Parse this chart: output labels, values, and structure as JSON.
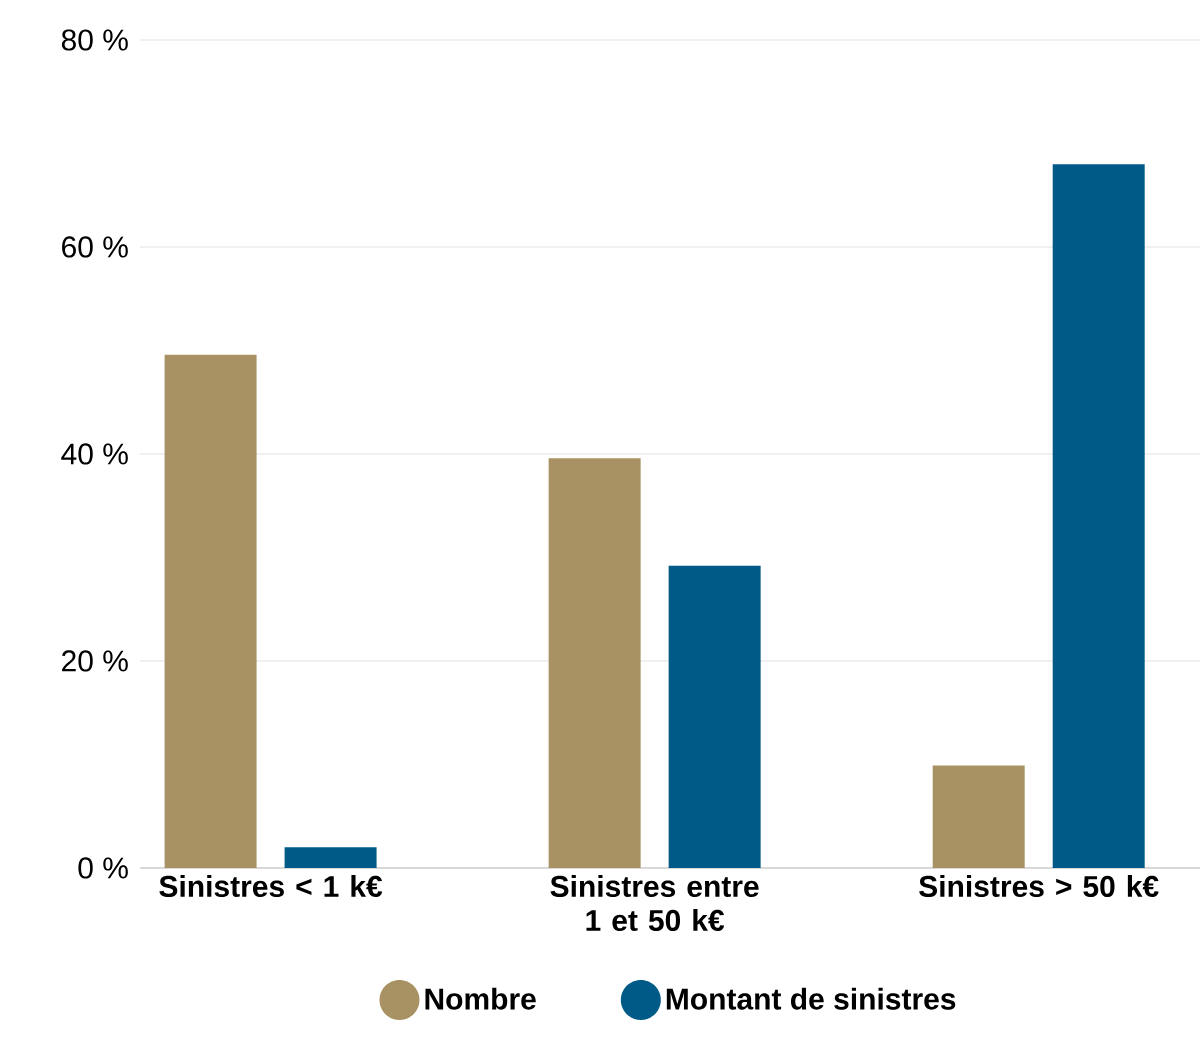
{
  "chart_data": {
    "type": "bar",
    "categories": [
      "Sinistres < 1 k€",
      "Sinistres entre 1 et 50 k€",
      "Sinistres > 50 k€"
    ],
    "series": [
      {
        "name": "Nombre",
        "color": "#a89263",
        "values": [
          49.6,
          39.6,
          9.9
        ]
      },
      {
        "name": "Montant de sinistres",
        "color": "#005a87",
        "values": [
          2.0,
          29.2,
          68.0
        ]
      }
    ],
    "ylim": [
      0,
      80
    ],
    "yticks": [
      {
        "value": 0,
        "label": "0 %"
      },
      {
        "value": 20,
        "label": "20 %"
      },
      {
        "value": 40,
        "label": "40 %"
      },
      {
        "value": 60,
        "label": "60 %"
      },
      {
        "value": 80,
        "label": "80 %"
      }
    ],
    "grid": "y",
    "legend": "bottom"
  }
}
